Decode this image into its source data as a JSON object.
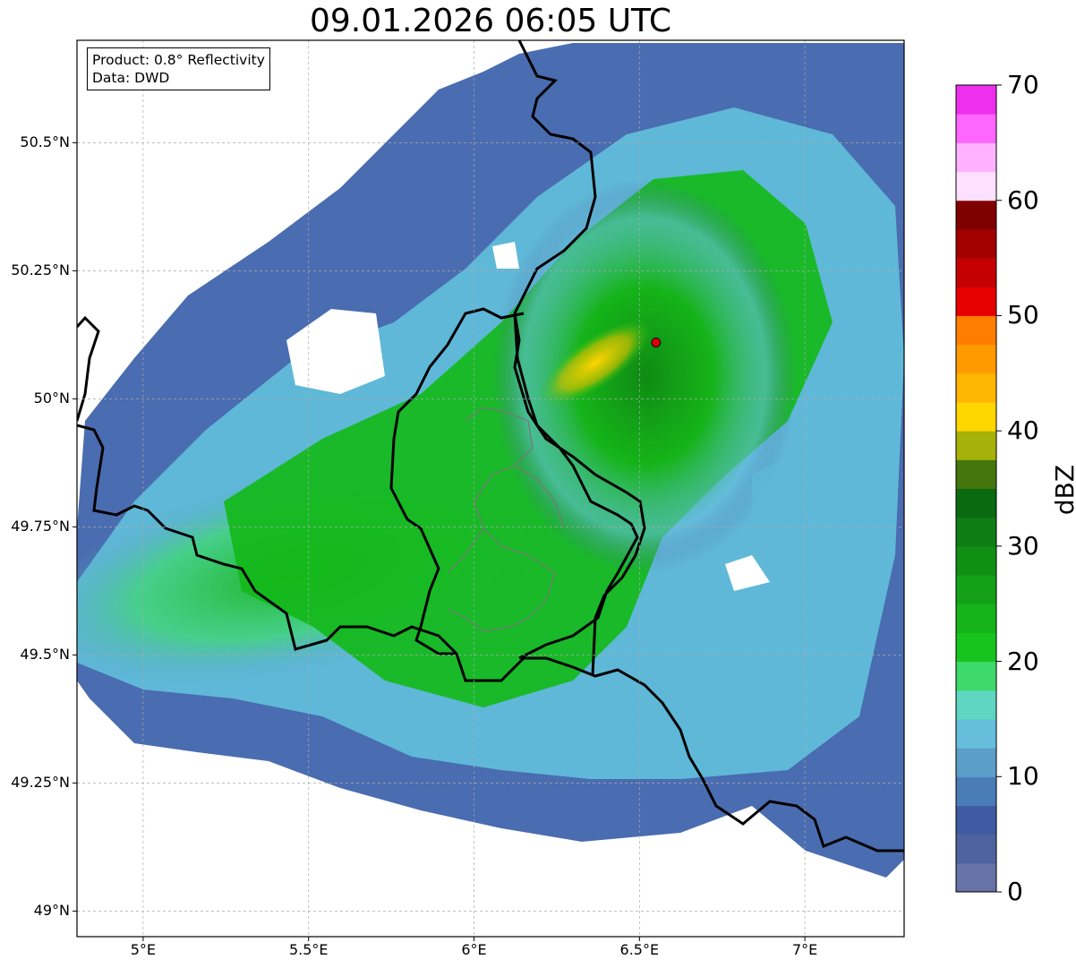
{
  "title": "09.01.2026 06:05 UTC",
  "info_box": {
    "product": "Product: 0.8° Reflectivity",
    "data_source": "Data: DWD"
  },
  "map": {
    "lon_range": [
      4.8,
      7.3
    ],
    "lat_range": [
      48.95,
      50.7
    ],
    "lat_ticks": [
      {
        "value": 50.5,
        "label": "50.5°N"
      },
      {
        "value": 50.25,
        "label": "50.25°N"
      },
      {
        "value": 50.0,
        "label": "50°N"
      },
      {
        "value": 49.75,
        "label": "49.75°N"
      },
      {
        "value": 49.5,
        "label": "49.5°N"
      },
      {
        "value": 49.25,
        "label": "49.25°N"
      },
      {
        "value": 49.0,
        "label": "49°N"
      }
    ],
    "lon_ticks": [
      {
        "value": 5.0,
        "label": "5°E"
      },
      {
        "value": 5.5,
        "label": "5.5°E"
      },
      {
        "value": 6.0,
        "label": "6°E"
      },
      {
        "value": 6.5,
        "label": "6.5°E"
      },
      {
        "value": 7.0,
        "label": "7°E"
      }
    ],
    "radar_site": {
      "lon": 6.55,
      "lat": 50.11,
      "color": "#e00000"
    },
    "gridlines": true
  },
  "colorbar": {
    "label": "dBZ",
    "min": 0,
    "max": 70,
    "ticks": [
      {
        "value": 0,
        "label": "0"
      },
      {
        "value": 10,
        "label": "10"
      },
      {
        "value": 20,
        "label": "20"
      },
      {
        "value": 30,
        "label": "30"
      },
      {
        "value": 40,
        "label": "40"
      },
      {
        "value": 50,
        "label": "50"
      },
      {
        "value": 60,
        "label": "60"
      },
      {
        "value": 70,
        "label": "70"
      }
    ],
    "colors": [
      "#6672a8",
      "#4f63a0",
      "#3f5ba2",
      "#4a7db8",
      "#5b9ec9",
      "#66bedd",
      "#5fd6c0",
      "#3dd96b",
      "#17c41d",
      "#15b318",
      "#13a117",
      "#118f15",
      "#0e7d13",
      "#0b6a10",
      "#44760d",
      "#a6b209",
      "#ffd600",
      "#ffb600",
      "#ff9a00",
      "#ff7d00",
      "#e60000",
      "#c40000",
      "#a30000",
      "#800000",
      "#ffe0ff",
      "#ffb2ff",
      "#ff66ff",
      "#ee30ee"
    ]
  }
}
